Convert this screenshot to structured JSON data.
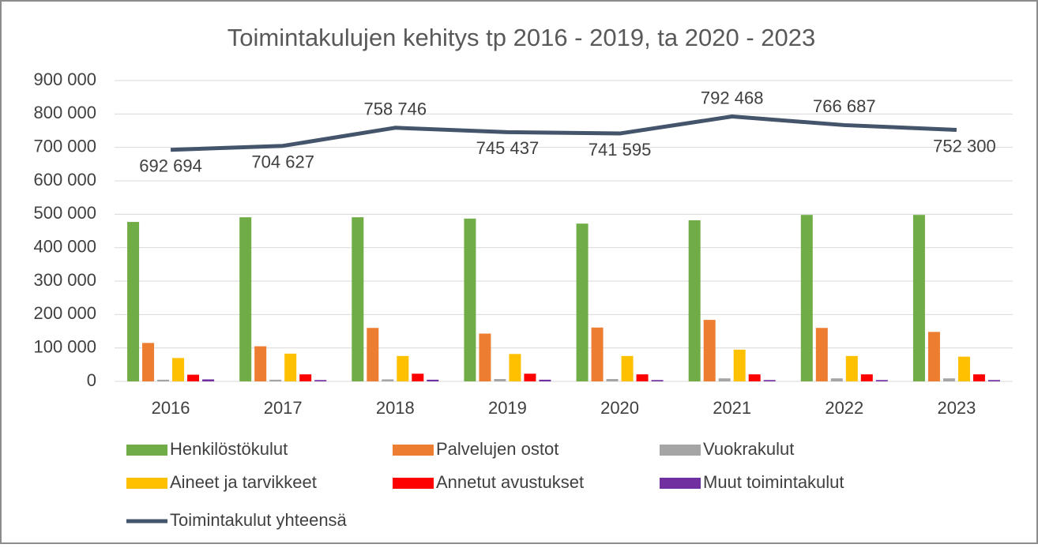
{
  "chart_data": {
    "type": "bar_line",
    "title": "Toimintakulujen kehitys tp 2016 - 2019, ta 2020 - 2023",
    "categories": [
      "2016",
      "2017",
      "2018",
      "2019",
      "2020",
      "2021",
      "2022",
      "2023"
    ],
    "ylim": [
      0,
      900000
    ],
    "yticks": [
      0,
      {
        "value": 100000,
        "label": "100 000"
      },
      {
        "value": 200000,
        "label": "200 000"
      },
      {
        "value": 300000,
        "label": "300 000"
      },
      {
        "value": 400000,
        "label": "400 000"
      },
      {
        "value": 500000,
        "label": "500 000"
      },
      {
        "value": 600000,
        "label": "600 000"
      },
      {
        "value": 700000,
        "label": "700 000"
      },
      {
        "value": 800000,
        "label": "800 000"
      },
      {
        "value": 900000,
        "label": "900 000"
      }
    ],
    "grid": true,
    "series": [
      {
        "name": "Henkilöstökulut",
        "color": "#70ad47",
        "kind": "bar",
        "values": [
          477000,
          491000,
          491000,
          487000,
          472000,
          482000,
          498000,
          498000
        ]
      },
      {
        "name": "Palvelujen ostot",
        "color": "#ed7d31",
        "kind": "bar",
        "values": [
          115000,
          105000,
          160000,
          143000,
          161000,
          184000,
          160000,
          148000
        ]
      },
      {
        "name": "Vuokrakulut",
        "color": "#a5a5a5",
        "kind": "bar",
        "values": [
          5000,
          5000,
          6000,
          7000,
          7000,
          9000,
          9000,
          9000
        ]
      },
      {
        "name": "Aineet ja tarvikkeet",
        "color": "#ffc000",
        "kind": "bar",
        "values": [
          70000,
          83000,
          76000,
          82000,
          76000,
          95000,
          76000,
          74000
        ]
      },
      {
        "name": "Annetut avustukset",
        "color": "#ff0000",
        "kind": "bar",
        "values": [
          20000,
          21000,
          23000,
          23000,
          21000,
          21000,
          21000,
          21000
        ]
      },
      {
        "name": "Muut toimintakulut",
        "color": "#7030a0",
        "kind": "bar",
        "values": [
          6000,
          4000,
          5000,
          5000,
          4000,
          4000,
          4000,
          4000
        ]
      },
      {
        "name": "Toimintakulut yhteensä",
        "color": "#44546a",
        "kind": "line",
        "values": [
          692694,
          704627,
          758746,
          745437,
          741595,
          792468,
          766687,
          752300
        ],
        "value_labels": [
          "692 694",
          "704 627",
          "758 746",
          "745 437",
          "741 595",
          "792 468",
          "766 687",
          "752 300"
        ]
      }
    ]
  }
}
